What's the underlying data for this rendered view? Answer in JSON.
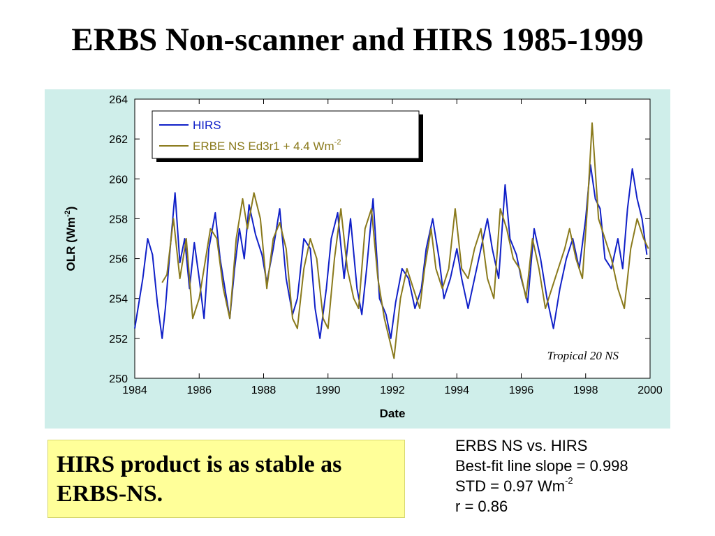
{
  "slide": {
    "title": "ERBS Non-scanner and HIRS 1985-1999",
    "callout": "HIRS product is as stable as ERBS-NS.",
    "stats": {
      "line1": "ERBS NS vs. HIRS",
      "line2": "Best-fit line slope = 0.998",
      "line3_pre": "STD = 0.97 Wm",
      "line3_sup": "-2",
      "line4": "r = 0.86"
    }
  },
  "colors": {
    "hirs": "#1020c8",
    "erbe": "#8a7a1c",
    "panel": "#cfeeea",
    "callout": "#ffff99"
  },
  "chart_data": {
    "type": "line",
    "xlabel": "Date",
    "ylabel_pre": "OLR (Wm",
    "ylabel_sup": "-2",
    "ylabel_post": ")",
    "xlim": [
      1984,
      2000
    ],
    "ylim": [
      250,
      264
    ],
    "xticks": [
      "1984",
      "1986",
      "1988",
      "1990",
      "1992",
      "1994",
      "1996",
      "1998",
      "2000"
    ],
    "yticks": [
      "250",
      "252",
      "254",
      "256",
      "258",
      "260",
      "262",
      "264"
    ],
    "annotation": "Tropical  20 NS",
    "legend_position": "top-left",
    "series": [
      {
        "name": "HIRS",
        "x": [
          1984.0,
          1984.25,
          1984.4,
          1984.55,
          1984.7,
          1984.85,
          1984.95,
          1985.1,
          1985.25,
          1985.4,
          1985.55,
          1985.7,
          1985.85,
          1986.0,
          1986.15,
          1986.3,
          1986.5,
          1986.65,
          1986.8,
          1986.95,
          1987.1,
          1987.25,
          1987.4,
          1987.55,
          1987.75,
          1987.95,
          1988.1,
          1988.3,
          1988.5,
          1988.7,
          1988.9,
          1989.05,
          1989.25,
          1989.45,
          1989.6,
          1989.75,
          1989.95,
          1990.1,
          1990.3,
          1990.5,
          1990.7,
          1990.9,
          1991.05,
          1991.2,
          1991.4,
          1991.6,
          1991.8,
          1991.95,
          1992.1,
          1992.3,
          1992.5,
          1992.7,
          1992.9,
          1993.05,
          1993.25,
          1993.45,
          1993.6,
          1993.8,
          1994.0,
          1994.15,
          1994.35,
          1994.55,
          1994.75,
          1994.95,
          1995.1,
          1995.3,
          1995.5,
          1995.65,
          1995.85,
          1996.0,
          1996.2,
          1996.4,
          1996.6,
          1996.8,
          1997.0,
          1997.2,
          1997.4,
          1997.6,
          1997.8,
          1998.0,
          1998.15,
          1998.3,
          1998.45,
          1998.6,
          1998.8,
          1999.0,
          1999.15,
          1999.3,
          1999.45,
          1999.6,
          1999.75,
          1999.9
        ],
        "values": [
          252.5,
          255.0,
          257.0,
          256.2,
          253.8,
          252.0,
          253.5,
          256.5,
          259.3,
          255.8,
          257.0,
          254.5,
          256.8,
          255.0,
          253.0,
          256.5,
          258.3,
          256.0,
          254.5,
          253.0,
          255.5,
          257.5,
          256.0,
          258.7,
          257.2,
          256.2,
          254.8,
          256.5,
          258.5,
          255.0,
          253.2,
          254.0,
          257.0,
          256.5,
          253.5,
          252.0,
          254.5,
          257.0,
          258.3,
          255.0,
          258.0,
          254.5,
          253.2,
          255.5,
          259.0,
          254.0,
          253.2,
          252.0,
          253.8,
          255.5,
          255.0,
          253.5,
          254.5,
          256.5,
          258.0,
          256.0,
          254.0,
          255.0,
          256.5,
          255.0,
          253.5,
          255.0,
          256.5,
          258.0,
          256.5,
          255.0,
          259.7,
          257.0,
          256.2,
          255.0,
          253.8,
          257.5,
          256.0,
          254.0,
          252.5,
          254.5,
          256.0,
          257.0,
          255.5,
          258.0,
          260.7,
          259.0,
          258.5,
          256.0,
          255.5,
          257.0,
          255.5,
          258.5,
          260.5,
          259.0,
          258.0,
          256.2
        ]
      },
      {
        "name": "ERBE NS Ed3r1 + 4.4 Wm",
        "name_sup": "-2",
        "x": [
          1984.85,
          1985.0,
          1985.2,
          1985.4,
          1985.6,
          1985.8,
          1986.0,
          1986.15,
          1986.35,
          1986.55,
          1986.75,
          1986.95,
          1987.15,
          1987.35,
          1987.5,
          1987.7,
          1987.9,
          1988.1,
          1988.3,
          1988.5,
          1988.7,
          1988.9,
          1989.05,
          1989.25,
          1989.45,
          1989.65,
          1989.85,
          1990.0,
          1990.2,
          1990.4,
          1990.6,
          1990.8,
          1990.95,
          1991.15,
          1991.35,
          1991.55,
          1991.75,
          1991.9,
          1992.05,
          1992.25,
          1992.45,
          1992.65,
          1992.85,
          1993.0,
          1993.2,
          1993.35,
          1993.55,
          1993.75,
          1993.95,
          1994.15,
          1994.35,
          1994.55,
          1994.75,
          1994.95,
          1995.15,
          1995.35,
          1995.55,
          1995.75,
          1995.95,
          1996.15,
          1996.35,
          1996.55,
          1996.75,
          1996.95,
          1997.15,
          1997.35,
          1997.5,
          1997.7,
          1997.9,
          1998.05,
          1998.2,
          1998.4,
          1998.6,
          1998.8,
          1999.0,
          1999.2,
          1999.4,
          1999.6,
          1999.8,
          1999.95
        ],
        "values": [
          254.8,
          255.2,
          258.0,
          255.0,
          257.0,
          253.0,
          254.0,
          255.5,
          257.5,
          257.0,
          254.5,
          253.0,
          257.0,
          259.0,
          257.5,
          259.3,
          258.0,
          254.5,
          257.0,
          257.8,
          256.5,
          253.0,
          252.5,
          255.5,
          257.0,
          256.0,
          253.0,
          252.5,
          256.0,
          258.5,
          255.5,
          254.0,
          253.5,
          257.5,
          258.5,
          255.0,
          253.0,
          252.0,
          251.0,
          254.0,
          255.5,
          254.5,
          253.5,
          255.5,
          257.5,
          255.5,
          254.5,
          255.5,
          258.5,
          255.5,
          255.0,
          256.5,
          257.5,
          255.0,
          254.0,
          258.5,
          257.5,
          256.0,
          255.5,
          254.0,
          257.0,
          255.5,
          253.5,
          254.5,
          255.5,
          256.5,
          257.5,
          256.0,
          255.0,
          258.5,
          262.8,
          258.0,
          257.0,
          256.0,
          254.5,
          253.5,
          256.5,
          258.0,
          257.0,
          256.5
        ]
      }
    ]
  }
}
